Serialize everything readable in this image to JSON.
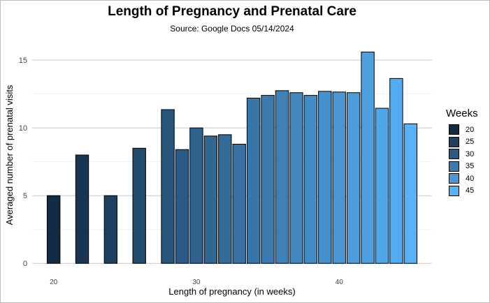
{
  "chart_data": {
    "type": "bar",
    "title": "Length of Pregnancy and Prenatal Care",
    "subtitle": "Source: Google Docs 05/14/2024",
    "xlabel": "Length of pregnancy (in weeks)",
    "ylabel": "Averaged number of prenatal visits",
    "x": [
      20,
      22,
      24,
      26,
      28,
      29,
      30,
      31,
      32,
      33,
      34,
      35,
      36,
      37,
      38,
      39,
      40,
      41,
      42,
      43,
      44,
      45
    ],
    "values": [
      5,
      8,
      5,
      8.5,
      11.35,
      8.4,
      10,
      9.4,
      9.5,
      8.8,
      12.2,
      12.4,
      12.75,
      12.6,
      12.4,
      12.7,
      12.65,
      12.6,
      15.6,
      11.45,
      13.65,
      10.3
    ],
    "xlim": [
      18.5,
      46.5
    ],
    "ylim": [
      -0.4,
      16.4
    ],
    "yticks": [
      0,
      5,
      10,
      15
    ],
    "xticks": [
      20,
      30,
      40
    ],
    "grid": true,
    "legend": {
      "title": "Weeks",
      "position": "right",
      "type": "gradient",
      "labels": [
        "20",
        "25",
        "30",
        "35",
        "40",
        "45"
      ],
      "colors": [
        "#132B43",
        "#20405d",
        "#2d5a82",
        "#3d79ac",
        "#4d97d4",
        "#56B1F7"
      ]
    },
    "color_low": "#132B43",
    "color_high": "#56B1F7"
  }
}
